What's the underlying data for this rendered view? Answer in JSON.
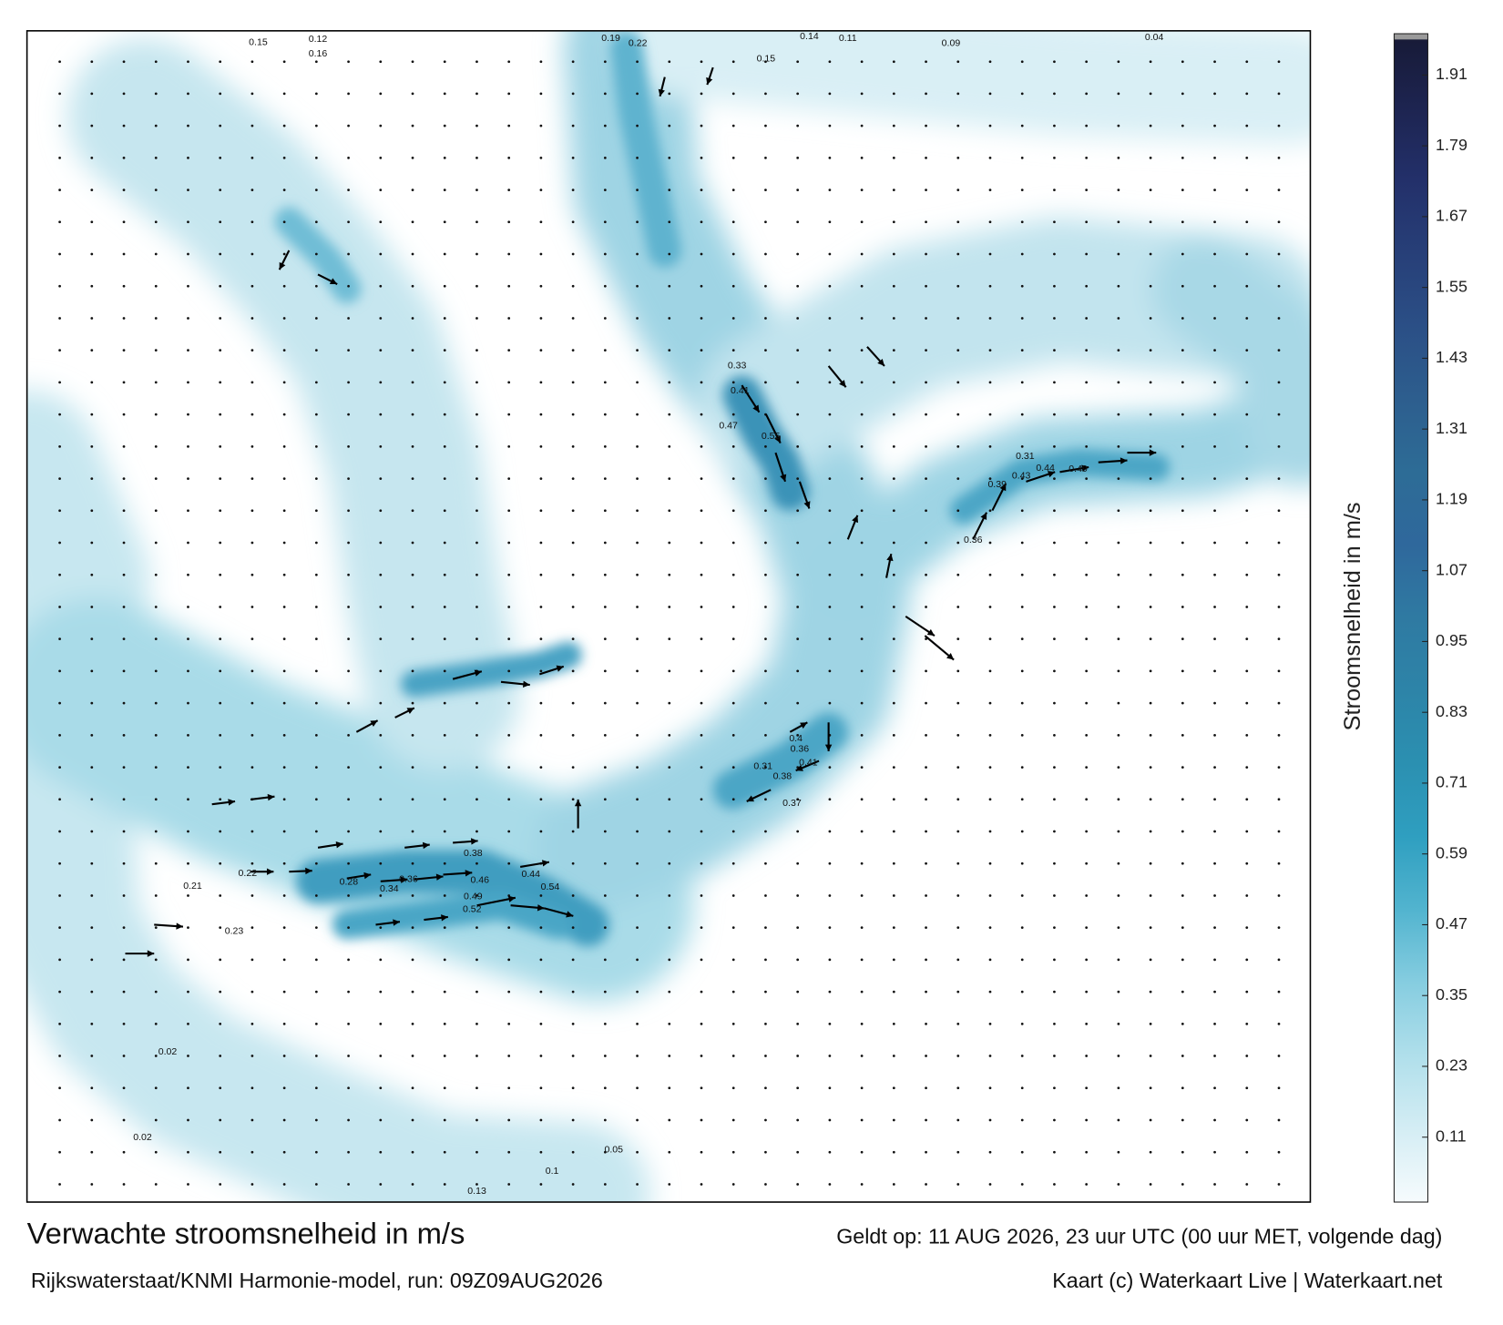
{
  "title": "Verwachte stroomsnelheid in m/s",
  "valid_time": "Geldt op: 11 AUG 2026, 23 uur UTC (00 uur MET, volgende dag)",
  "source": "Rijkswaterstaat/KNMI Harmonie-model, run: 09Z09AUG2026",
  "credit": "Kaart (c) Waterkaart Live | Waterkaart.net",
  "colorbar": {
    "label": "Stroomsnelheid in m/s",
    "lim": [
      0,
      1.98
    ],
    "ticks": [
      0.11,
      0.23,
      0.35,
      0.47,
      0.59,
      0.71,
      0.83,
      0.95,
      1.07,
      1.19,
      1.31,
      1.43,
      1.55,
      1.67,
      1.79,
      1.91
    ],
    "colors": [
      "#f6fbfd",
      "#d4edf4",
      "#b0dfeb",
      "#86cde0",
      "#52b4cf",
      "#2f9fc0",
      "#2b90b1",
      "#2d84a8",
      "#2f7aa2",
      "#2f689c",
      "#2d6c96",
      "#2d5e8e",
      "#2b4f86",
      "#273f78",
      "#23306a",
      "#1d2450",
      "#171a36"
    ]
  },
  "speed_labels": [
    0.54,
    0.44,
    0.49,
    0.52,
    0.46,
    0.38,
    0.34,
    0.36,
    0.28,
    0.22,
    0.21,
    0.23,
    0.55,
    0.47,
    0.41,
    0.33,
    0.43,
    0.44,
    0.49,
    0.31,
    0.39,
    0.36,
    0.4,
    0.36,
    0.41,
    0.38,
    0.37,
    0.31,
    0.19,
    0.22,
    0.15,
    0.14,
    0.11,
    0.09,
    0.04,
    0.12,
    0.16,
    0.15,
    0.13,
    0.02,
    0.02,
    0.05,
    0.1
  ]
}
